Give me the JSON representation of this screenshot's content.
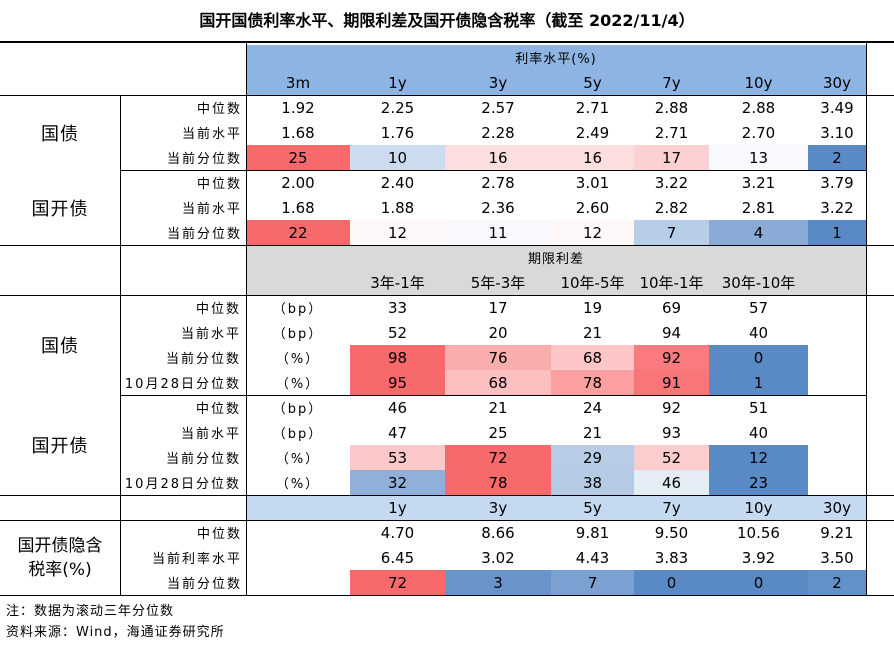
{
  "title": "国开国债利率水平、期限利差及国开债隐含税率（截至 2022/11/4）",
  "colors": {
    "red": "#F8696B",
    "blue": "#5A8AC6",
    "header1": "#8EB4E3",
    "header2": "#D9D9D9",
    "header3": "#C5D9F1"
  },
  "sections": [
    {
      "type": "rates",
      "header": "利率水平(%)",
      "columns": [
        "3m",
        "1y",
        "3y",
        "5y",
        "7y",
        "10y",
        "30y"
      ],
      "groups": [
        {
          "name": "国债",
          "rows": [
            {
              "label": "中位数",
              "unit": "",
              "values": [
                "1.92",
                "2.25",
                "2.57",
                "2.71",
                "2.88",
                "2.88",
                "3.49"
              ],
              "pct": null
            },
            {
              "label": "当前水平",
              "unit": "",
              "values": [
                "1.68",
                "1.76",
                "2.28",
                "2.49",
                "2.71",
                "2.70",
                "3.10"
              ],
              "pct": null
            },
            {
              "label": "当前分位数",
              "unit": "",
              "values": [
                "25",
                "10",
                "16",
                "16",
                "17",
                "13",
                "2"
              ],
              "pct": [
                25,
                10,
                16,
                16,
                17,
                13,
                2
              ]
            }
          ]
        },
        {
          "name": "国开债",
          "rows": [
            {
              "label": "中位数",
              "unit": "",
              "values": [
                "2.00",
                "2.40",
                "2.78",
                "3.01",
                "3.22",
                "3.21",
                "3.79"
              ],
              "pct": null
            },
            {
              "label": "当前水平",
              "unit": "",
              "values": [
                "1.68",
                "1.88",
                "2.36",
                "2.60",
                "2.82",
                "2.81",
                "3.22"
              ],
              "pct": null
            },
            {
              "label": "当前分位数",
              "unit": "",
              "values": [
                "22",
                "12",
                "11",
                "12",
                "7",
                "4",
                "1"
              ],
              "pct": [
                22,
                12,
                11,
                12,
                7,
                4,
                1
              ]
            }
          ]
        }
      ]
    },
    {
      "type": "spreads",
      "header": "期限利差",
      "columns": [
        "3年-1年",
        "5年-3年",
        "10年-5年",
        "10年-1年",
        "30年-10年"
      ],
      "groups": [
        {
          "name": "国债",
          "rows": [
            {
              "label": "中位数",
              "unit": "（bp）",
              "values": [
                "33",
                "17",
                "19",
                "69",
                "57"
              ],
              "pct": null
            },
            {
              "label": "当前水平",
              "unit": "（bp）",
              "values": [
                "52",
                "20",
                "21",
                "94",
                "40"
              ],
              "pct": null
            },
            {
              "label": "当前分位数",
              "unit": "（%）",
              "values": [
                "98",
                "76",
                "68",
                "92",
                "0"
              ],
              "pct": [
                98,
                76,
                68,
                92,
                0
              ]
            },
            {
              "label": "10月28日分位数",
              "unit": "（%）",
              "values": [
                "95",
                "68",
                "78",
                "91",
                "1"
              ],
              "pct": [
                95,
                68,
                78,
                91,
                1
              ]
            }
          ]
        },
        {
          "name": "国开债",
          "rows": [
            {
              "label": "中位数",
              "unit": "（bp）",
              "values": [
                "46",
                "21",
                "24",
                "92",
                "51"
              ],
              "pct": null
            },
            {
              "label": "当前水平",
              "unit": "（bp）",
              "values": [
                "47",
                "25",
                "21",
                "93",
                "40"
              ],
              "pct": null
            },
            {
              "label": "当前分位数",
              "unit": "（%）",
              "values": [
                "53",
                "72",
                "29",
                "52",
                "12"
              ],
              "pct": [
                53,
                72,
                29,
                52,
                12
              ]
            },
            {
              "label": "10月28日分位数",
              "unit": "（%）",
              "values": [
                "32",
                "78",
                "38",
                "46",
                "23"
              ],
              "pct": [
                32,
                78,
                38,
                46,
                23
              ]
            }
          ]
        }
      ]
    },
    {
      "type": "taxrate",
      "columns": [
        "1y",
        "3y",
        "5y",
        "7y",
        "10y",
        "30y"
      ],
      "groups": [
        {
          "name": "国开债隐含税率(%)",
          "rows": [
            {
              "label": "中位数",
              "unit": "",
              "values": [
                "4.70",
                "8.66",
                "9.81",
                "9.50",
                "10.56",
                "9.21"
              ],
              "pct": null
            },
            {
              "label": "当前利率水平",
              "unit": "",
              "values": [
                "6.45",
                "3.02",
                "4.43",
                "3.83",
                "3.92",
                "3.50"
              ],
              "pct": null
            },
            {
              "label": "当前分位数",
              "unit": "",
              "values": [
                "72",
                "3",
                "7",
                "0",
                "0",
                "2"
              ],
              "pct": [
                72,
                3,
                7,
                0,
                0,
                2
              ]
            }
          ]
        }
      ]
    }
  ],
  "notes": [
    "注：数据为滚动三年分位数",
    "资料来源：Wind，海通证券研究所"
  ]
}
